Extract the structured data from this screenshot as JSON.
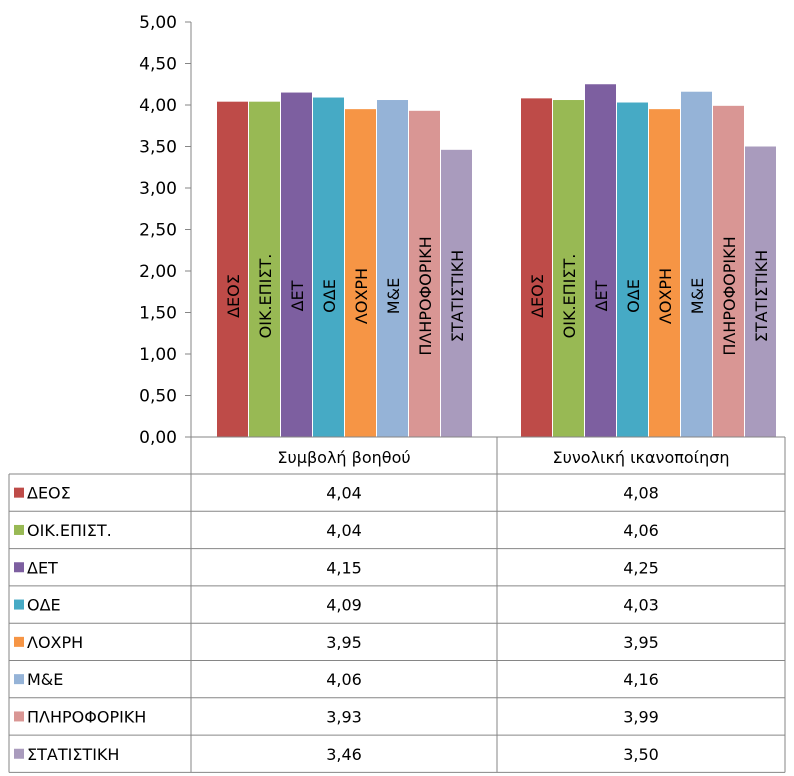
{
  "chart_data": {
    "type": "bar",
    "categories": [
      "Συμβολή βοηθού",
      "Συνολική ικανοποίηση"
    ],
    "series": [
      {
        "name": "ΔΕΟΣ",
        "color": "#BE4B48",
        "values": [
          4.04,
          4.08
        ],
        "labels": [
          "4,04",
          "4,08"
        ]
      },
      {
        "name": "ΟΙΚ.ΕΠΙΣΤ.",
        "color": "#98B954",
        "values": [
          4.04,
          4.06
        ],
        "labels": [
          "4,04",
          "4,06"
        ]
      },
      {
        "name": "ΔΕΤ",
        "color": "#7D5FA0",
        "values": [
          4.15,
          4.25
        ],
        "labels": [
          "4,15",
          "4,25"
        ]
      },
      {
        "name": "ΟΔΕ",
        "color": "#46AAC5",
        "values": [
          4.09,
          4.03
        ],
        "labels": [
          "4,09",
          "4,03"
        ]
      },
      {
        "name": "ΛΟΧΡΗ",
        "color": "#F69545",
        "values": [
          3.95,
          3.95
        ],
        "labels": [
          "3,95",
          "3,95"
        ]
      },
      {
        "name": "Μ&Ε",
        "color": "#95B3D7",
        "values": [
          4.06,
          4.16
        ],
        "labels": [
          "4,06",
          "4,16"
        ]
      },
      {
        "name": "ΠΛΗΡΟΦΟΡΙΚΗ",
        "color": "#D99694",
        "values": [
          3.93,
          3.99
        ],
        "labels": [
          "3,93",
          "3,99"
        ]
      },
      {
        "name": "ΣΤΑΤΙΣΤΙΚΗ",
        "color": "#A99BBD",
        "values": [
          3.46,
          3.5
        ],
        "labels": [
          "3,46",
          "3,50"
        ]
      }
    ],
    "yticks": [
      "0,00",
      "0,50",
      "1,00",
      "1,50",
      "2,00",
      "2,50",
      "3,00",
      "3,50",
      "4,00",
      "4,50",
      "5,00"
    ],
    "ylim": [
      0,
      5
    ],
    "grid": false,
    "legend": "data table"
  }
}
